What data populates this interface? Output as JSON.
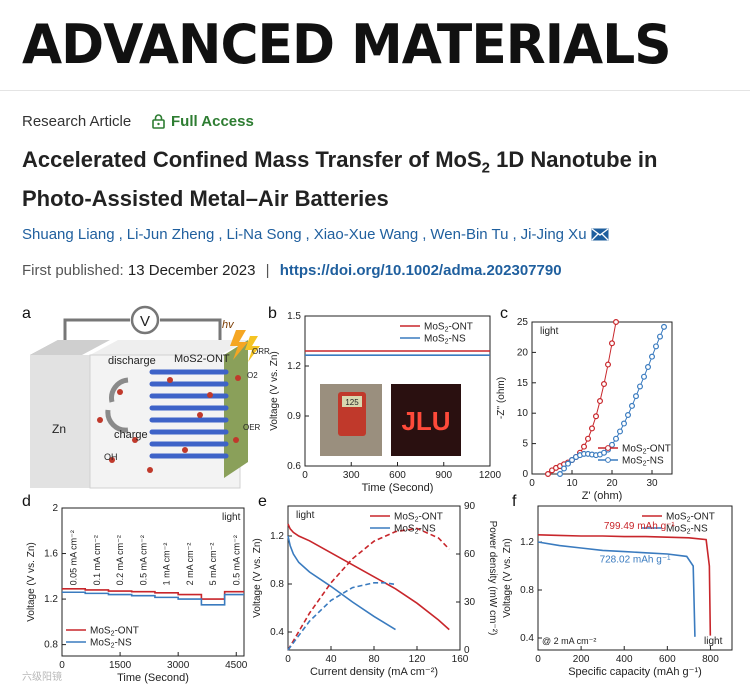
{
  "journal": "ADVANCED MATERIALS",
  "article_type": "Research Article",
  "access": "Full Access",
  "title_line1_pre": "Accelerated Confined Mass Transfer of MoS",
  "title_line1_sub": "2",
  "title_line1_post": " 1D Nanotube in",
  "title_line2": "Photo-Assisted Metal–Air Batteries",
  "authors": [
    "Shuang Liang",
    "Li-Jun Zheng",
    "Li-Na Song",
    "Xiao-Xue Wang",
    "Wen-Bin Tu",
    "Ji-Jing Xu"
  ],
  "published_label": "First published:",
  "published_date": "13 December 2023",
  "doi": "https://doi.org/10.1002/adma.202307790",
  "separator": "|",
  "icons": {
    "lock": "lock-icon",
    "mail": "mail-icon"
  },
  "colors": {
    "ont": "#c8262b",
    "ns": "#3a7bbf",
    "link": "#1f5f9e",
    "access": "#2e7d32"
  },
  "panel_a": {
    "letter": "a",
    "zn": "Zn",
    "v": "V",
    "hv": "hv",
    "discharge": "discharge",
    "charge": "charge",
    "ontlabel": "MoS2-ONT",
    "orr": "ORR",
    "o2": "O2",
    "oer": "OER",
    "oh": "OH"
  },
  "watermark": "六级阳镜",
  "chart_data": [
    {
      "panel": "b",
      "type": "line",
      "xlabel": "Time (Second)",
      "ylabel": "Voltage (V vs. Zn)",
      "xlim": [
        0,
        1200
      ],
      "ylim": [
        0.6,
        1.5
      ],
      "xticks": [
        0,
        300,
        600,
        900,
        1200
      ],
      "yticks": [
        0.6,
        0.9,
        1.2,
        1.5
      ],
      "legend": "top-right",
      "inset_display": "JLU",
      "inset_meter": "125",
      "series": [
        {
          "name": "MoS2-ONT",
          "x": [
            0,
            1200
          ],
          "y": [
            1.29,
            1.29
          ]
        },
        {
          "name": "MoS2-NS",
          "x": [
            0,
            1200
          ],
          "y": [
            1.265,
            1.265
          ]
        }
      ]
    },
    {
      "panel": "c",
      "type": "scatter",
      "xlabel": "Z' (ohm)",
      "ylabel": "-Z'' (ohm)",
      "annotation": "light",
      "xlim": [
        0,
        35
      ],
      "ylim": [
        0,
        25
      ],
      "xticks": [
        0,
        10,
        20,
        30
      ],
      "yticks": [
        0,
        5,
        10,
        15,
        20,
        25
      ],
      "legend": "bottom-right",
      "series": [
        {
          "name": "MoS2-ONT",
          "x": [
            4,
            5,
            6,
            7,
            8,
            9,
            10,
            11,
            12,
            13,
            14,
            15,
            16,
            17,
            18,
            19,
            20,
            21
          ],
          "y": [
            0,
            0.6,
            1.0,
            1.3,
            1.6,
            1.9,
            2.3,
            2.8,
            3.5,
            4.5,
            5.8,
            7.5,
            9.5,
            12.0,
            14.8,
            18.0,
            21.5,
            25.0
          ]
        },
        {
          "name": "MoS2-NS",
          "x": [
            7,
            8,
            9,
            10,
            11,
            12,
            13,
            14,
            15,
            16,
            17,
            18,
            19,
            20,
            21,
            22,
            23,
            24,
            25,
            26,
            27,
            28,
            29,
            30,
            31,
            32,
            33
          ],
          "y": [
            0,
            0.9,
            1.7,
            2.3,
            2.8,
            3.1,
            3.3,
            3.3,
            3.2,
            3.1,
            3.2,
            3.5,
            4.0,
            4.8,
            5.8,
            7.0,
            8.3,
            9.7,
            11.2,
            12.8,
            14.4,
            16.0,
            17.6,
            19.3,
            21.0,
            22.6,
            24.2
          ]
        }
      ]
    },
    {
      "panel": "d",
      "type": "line",
      "xlabel": "Time (Second)",
      "ylabel": "Voltage (V vs. Zn)",
      "annotation": "light",
      "xlim": [
        0,
        4700
      ],
      "ylim": [
        0.7,
        2.0
      ],
      "xticks": [
        0,
        1500,
        3000,
        4500
      ],
      "yticks": [
        0.8,
        1.2,
        1.6,
        2.0
      ],
      "legend": "bottom-left",
      "rate_labels": [
        "0.05 mA cm⁻²",
        "0.1 mA cm⁻²",
        "0.2 mA cm⁻²",
        "0.5 mA cm⁻²",
        "1 mA cm⁻²",
        "2 mA cm⁻²",
        "5 mA cm⁻²",
        "0.5 mA cm⁻²"
      ],
      "series": [
        {
          "name": "MoS2-ONT",
          "x": [
            0,
            600,
            600,
            1200,
            1200,
            1800,
            1800,
            2400,
            2400,
            3000,
            3000,
            3600,
            3600,
            4200,
            4200,
            4700
          ],
          "y": [
            1.29,
            1.29,
            1.28,
            1.28,
            1.27,
            1.27,
            1.265,
            1.265,
            1.255,
            1.255,
            1.24,
            1.24,
            1.2,
            1.2,
            1.265,
            1.265
          ]
        },
        {
          "name": "MoS2-NS",
          "x": [
            0,
            600,
            600,
            1200,
            1200,
            1800,
            1800,
            2400,
            2400,
            3000,
            3000,
            3600,
            3600,
            4200,
            4200,
            4700
          ],
          "y": [
            1.26,
            1.26,
            1.25,
            1.25,
            1.24,
            1.24,
            1.23,
            1.23,
            1.215,
            1.215,
            1.2,
            1.2,
            1.15,
            1.15,
            1.24,
            1.24
          ]
        }
      ]
    },
    {
      "panel": "e",
      "type": "line",
      "xlabel": "Current density (mA cm⁻²)",
      "ylabel": "Voltage (V vs. Zn)",
      "ylabel2": "Power density (mW cm⁻²)",
      "annotation": "light",
      "xlim": [
        0,
        160
      ],
      "ylim": [
        0.25,
        1.45
      ],
      "ylim2": [
        0,
        90
      ],
      "xticks": [
        0,
        40,
        80,
        120,
        160
      ],
      "yticks": [
        0.4,
        0.8,
        1.2
      ],
      "yticks2": [
        0,
        30,
        60,
        90
      ],
      "legend": "top-right",
      "series": [
        {
          "name": "MoS2-ONT",
          "x": [
            0,
            2,
            5,
            10,
            20,
            40,
            60,
            80,
            100,
            120,
            140,
            150
          ],
          "y": [
            1.3,
            1.26,
            1.23,
            1.2,
            1.16,
            1.06,
            0.96,
            0.86,
            0.76,
            0.64,
            0.5,
            0.42
          ]
        },
        {
          "name": "MoS2-NS",
          "x": [
            0,
            2,
            5,
            10,
            20,
            40,
            60,
            80,
            100
          ],
          "y": [
            1.2,
            1.12,
            1.05,
            0.98,
            0.9,
            0.78,
            0.65,
            0.53,
            0.42
          ]
        },
        {
          "name": "MoS2-ONT power",
          "x": [
            0,
            20,
            40,
            60,
            80,
            100,
            120,
            140,
            150
          ],
          "y": [
            0,
            23,
            42,
            57,
            68,
            74,
            76,
            70,
            63
          ]
        },
        {
          "name": "MoS2-NS power",
          "x": [
            0,
            20,
            40,
            60,
            80,
            90,
            100
          ],
          "y": [
            0,
            18,
            31,
            39,
            42,
            42,
            41
          ]
        }
      ]
    },
    {
      "panel": "f",
      "type": "line",
      "xlabel": "Specific capacity (mAh g⁻¹)",
      "ylabel": "Voltage (V vs. Zn)",
      "annotation_rate": "@ 2 mA cm⁻²",
      "annotation_light": "light",
      "xlim": [
        0,
        900
      ],
      "ylim": [
        0.3,
        1.5
      ],
      "xticks": [
        0,
        200,
        400,
        600,
        800
      ],
      "yticks": [
        0.4,
        0.8,
        1.2
      ],
      "legend": "top-right",
      "labels": [
        "799.49 mAh g⁻¹",
        "728.02 mAh g⁻¹"
      ],
      "series": [
        {
          "name": "MoS2-ONT",
          "x": [
            0,
            100,
            200,
            300,
            400,
            500,
            600,
            700,
            780,
            795,
            799.49
          ],
          "y": [
            1.26,
            1.255,
            1.25,
            1.25,
            1.245,
            1.245,
            1.24,
            1.235,
            1.22,
            1.0,
            0.42
          ]
        },
        {
          "name": "MoS2-NS",
          "x": [
            0,
            100,
            200,
            300,
            400,
            500,
            600,
            690,
            720,
            728.02
          ],
          "y": [
            1.2,
            1.17,
            1.15,
            1.13,
            1.12,
            1.11,
            1.1,
            1.08,
            1.0,
            0.41
          ]
        }
      ]
    }
  ]
}
